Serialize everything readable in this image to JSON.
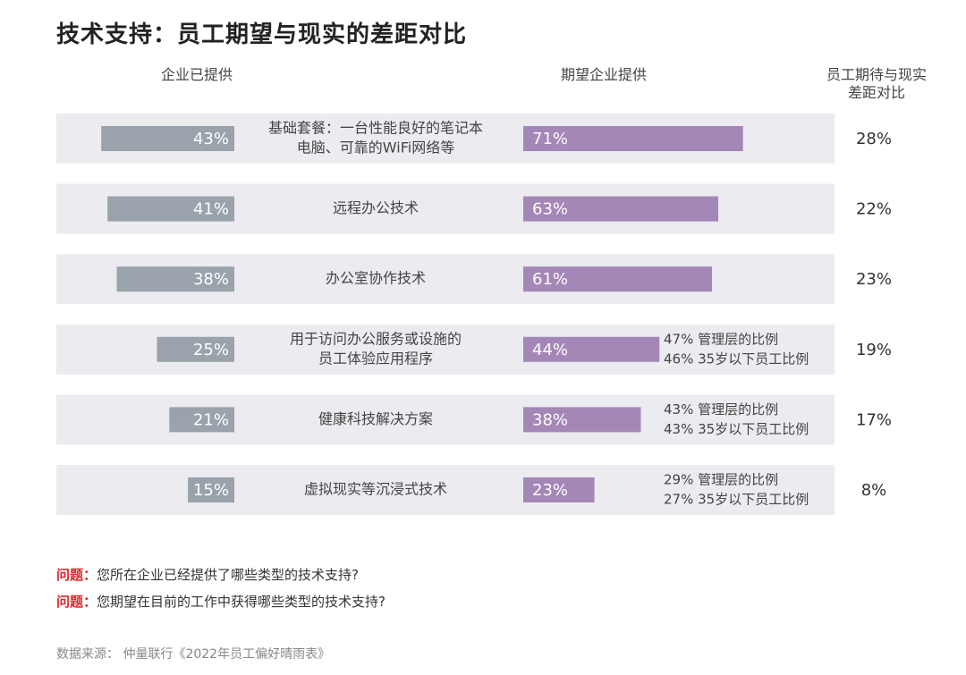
{
  "title": "技术支持：员工期望与现实的差距对比",
  "columns": {
    "provided": "企业已提供",
    "expected": "期望企业提供",
    "gap_line1": "员工期待与现实",
    "gap_line2": "差距对比"
  },
  "colors": {
    "row_bg": "#ebebf0",
    "provided_bar": "#9aa2ab",
    "expected_bar": "#a486b7",
    "bar_text": "#ffffff"
  },
  "chart_data": {
    "type": "bar",
    "title": "技术支持：员工期望与现实的差距对比",
    "xlim": [
      0,
      100
    ],
    "series": [
      {
        "name": "企业已提供",
        "values": [
          43,
          41,
          38,
          25,
          21,
          15
        ]
      },
      {
        "name": "期望企业提供",
        "values": [
          71,
          63,
          61,
          44,
          38,
          23
        ]
      },
      {
        "name": "员工期待与现实差距对比",
        "values": [
          28,
          22,
          23,
          19,
          17,
          8
        ]
      }
    ],
    "rows": [
      {
        "category": [
          "基础套餐：一台性能良好的笔记本",
          "电脑、可靠的WiFi网络等"
        ],
        "provided": 43,
        "provided_label": "43%",
        "expected": 71,
        "expected_label": "71%",
        "gap_label": "28%",
        "notes": []
      },
      {
        "category": [
          "远程办公技术"
        ],
        "provided": 41,
        "provided_label": "41%",
        "expected": 63,
        "expected_label": "63%",
        "gap_label": "22%",
        "notes": []
      },
      {
        "category": [
          "办公室协作技术"
        ],
        "provided": 38,
        "provided_label": "38%",
        "expected": 61,
        "expected_label": "61%",
        "gap_label": "23%",
        "notes": []
      },
      {
        "category": [
          "用于访问办公服务或设施的",
          "员工体验应用程序"
        ],
        "provided": 25,
        "provided_label": "25%",
        "expected": 44,
        "expected_label": "44%",
        "gap_label": "19%",
        "notes": [
          "47% 管理层的比例",
          "46% 35岁以下员工比例"
        ]
      },
      {
        "category": [
          "健康科技解决方案"
        ],
        "provided": 21,
        "provided_label": "21%",
        "expected": 38,
        "expected_label": "38%",
        "gap_label": "17%",
        "notes": [
          "43% 管理层的比例",
          "43% 35岁以下员工比例"
        ]
      },
      {
        "category": [
          "虚拟现实等沉浸式技术"
        ],
        "provided": 15,
        "provided_label": "15%",
        "expected": 23,
        "expected_label": "23%",
        "gap_label": "8%",
        "notes": [
          "29% 管理层的比例",
          "27% 35岁以下员工比例"
        ]
      }
    ]
  },
  "questions": [
    {
      "label": "问题：",
      "text": "您所在企业已经提供了哪些类型的技术支持?"
    },
    {
      "label": "问题：",
      "text": "您期望在目前的工作中获得哪些类型的技术支持?"
    }
  ],
  "source": "数据来源： 仲量联行《2022年员工偏好晴雨表》"
}
